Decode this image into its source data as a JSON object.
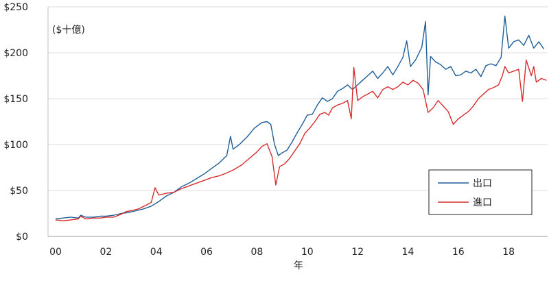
{
  "chart_data": {
    "type": "line",
    "title": "",
    "unit_label": "($十億)",
    "xlabel": "年",
    "ylabel": "",
    "ylim": [
      0,
      250
    ],
    "xlim": [
      1999.7,
      2019.55
    ],
    "yticks": [
      {
        "value": 0,
        "label": "$0"
      },
      {
        "value": 50,
        "label": "$50"
      },
      {
        "value": 100,
        "label": "$100"
      },
      {
        "value": 150,
        "label": "$150"
      },
      {
        "value": 200,
        "label": "$200"
      },
      {
        "value": 250,
        "label": "$250"
      }
    ],
    "xticks": [
      {
        "value": 2000,
        "label": "00"
      },
      {
        "value": 2002,
        "label": "02"
      },
      {
        "value": 2004,
        "label": "04"
      },
      {
        "value": 2006,
        "label": "06"
      },
      {
        "value": 2008,
        "label": "08"
      },
      {
        "value": 2010,
        "label": "10"
      },
      {
        "value": 2012,
        "label": "12"
      },
      {
        "value": 2014,
        "label": "14"
      },
      {
        "value": 2016,
        "label": "16"
      },
      {
        "value": 2018,
        "label": "18"
      }
    ],
    "grid": "horizontal",
    "legend_position": "bottom-right",
    "series": [
      {
        "name": "出口",
        "color": "#1f5f99",
        "points": [
          [
            2000.0,
            19
          ],
          [
            2000.3,
            20
          ],
          [
            2000.6,
            21
          ],
          [
            2000.9,
            20
          ],
          [
            2001.0,
            23
          ],
          [
            2001.2,
            21
          ],
          [
            2001.5,
            21
          ],
          [
            2001.8,
            22
          ],
          [
            2002.0,
            22
          ],
          [
            2002.3,
            23
          ],
          [
            2002.6,
            25
          ],
          [
            2002.9,
            26
          ],
          [
            2003.2,
            28
          ],
          [
            2003.5,
            30
          ],
          [
            2003.8,
            33
          ],
          [
            2004.1,
            38
          ],
          [
            2004.4,
            44
          ],
          [
            2004.7,
            48
          ],
          [
            2005.0,
            54
          ],
          [
            2005.3,
            58
          ],
          [
            2005.6,
            63
          ],
          [
            2005.9,
            68
          ],
          [
            2006.2,
            74
          ],
          [
            2006.5,
            80
          ],
          [
            2006.8,
            88
          ],
          [
            2006.95,
            109
          ],
          [
            2007.05,
            95
          ],
          [
            2007.3,
            100
          ],
          [
            2007.6,
            108
          ],
          [
            2007.9,
            118
          ],
          [
            2008.2,
            124
          ],
          [
            2008.4,
            125
          ],
          [
            2008.55,
            122
          ],
          [
            2008.7,
            100
          ],
          [
            2008.85,
            88
          ],
          [
            2009.0,
            91
          ],
          [
            2009.2,
            94
          ],
          [
            2009.4,
            103
          ],
          [
            2009.6,
            113
          ],
          [
            2009.8,
            122
          ],
          [
            2010.0,
            132
          ],
          [
            2010.2,
            133
          ],
          [
            2010.4,
            143
          ],
          [
            2010.6,
            151
          ],
          [
            2010.8,
            147
          ],
          [
            2011.0,
            150
          ],
          [
            2011.2,
            158
          ],
          [
            2011.4,
            161
          ],
          [
            2011.6,
            165
          ],
          [
            2011.8,
            160
          ],
          [
            2012.0,
            165
          ],
          [
            2012.2,
            170
          ],
          [
            2012.4,
            175
          ],
          [
            2012.6,
            180
          ],
          [
            2012.8,
            172
          ],
          [
            2013.0,
            178
          ],
          [
            2013.2,
            185
          ],
          [
            2013.4,
            176
          ],
          [
            2013.6,
            185
          ],
          [
            2013.8,
            195
          ],
          [
            2013.95,
            213
          ],
          [
            2014.1,
            185
          ],
          [
            2014.3,
            192
          ],
          [
            2014.55,
            206
          ],
          [
            2014.7,
            234
          ],
          [
            2014.8,
            154
          ],
          [
            2014.9,
            196
          ],
          [
            2015.1,
            190
          ],
          [
            2015.3,
            187
          ],
          [
            2015.5,
            182
          ],
          [
            2015.7,
            185
          ],
          [
            2015.9,
            175
          ],
          [
            2016.1,
            176
          ],
          [
            2016.3,
            180
          ],
          [
            2016.5,
            178
          ],
          [
            2016.7,
            182
          ],
          [
            2016.9,
            174
          ],
          [
            2017.1,
            186
          ],
          [
            2017.3,
            188
          ],
          [
            2017.5,
            186
          ],
          [
            2017.7,
            195
          ],
          [
            2017.85,
            240
          ],
          [
            2018.0,
            205
          ],
          [
            2018.2,
            212
          ],
          [
            2018.4,
            214
          ],
          [
            2018.6,
            208
          ],
          [
            2018.8,
            219
          ],
          [
            2019.0,
            205
          ],
          [
            2019.2,
            212
          ],
          [
            2019.4,
            204
          ]
        ]
      },
      {
        "name": "進口",
        "color": "#d62c2c",
        "points": [
          [
            2000.0,
            18
          ],
          [
            2000.3,
            17
          ],
          [
            2000.6,
            18
          ],
          [
            2000.9,
            19
          ],
          [
            2001.0,
            22
          ],
          [
            2001.2,
            19
          ],
          [
            2001.5,
            20
          ],
          [
            2001.8,
            20
          ],
          [
            2002.0,
            21
          ],
          [
            2002.3,
            21
          ],
          [
            2002.6,
            24
          ],
          [
            2002.8,
            27
          ],
          [
            2003.0,
            28
          ],
          [
            2003.3,
            30
          ],
          [
            2003.6,
            34
          ],
          [
            2003.8,
            37
          ],
          [
            2003.95,
            53
          ],
          [
            2004.1,
            45
          ],
          [
            2004.4,
            47
          ],
          [
            2004.7,
            48
          ],
          [
            2005.0,
            52
          ],
          [
            2005.3,
            55
          ],
          [
            2005.6,
            58
          ],
          [
            2005.9,
            61
          ],
          [
            2006.2,
            64
          ],
          [
            2006.5,
            66
          ],
          [
            2006.8,
            69
          ],
          [
            2007.1,
            73
          ],
          [
            2007.4,
            78
          ],
          [
            2007.7,
            85
          ],
          [
            2008.0,
            92
          ],
          [
            2008.2,
            98
          ],
          [
            2008.4,
            101
          ],
          [
            2008.6,
            87
          ],
          [
            2008.75,
            56
          ],
          [
            2008.9,
            76
          ],
          [
            2009.1,
            79
          ],
          [
            2009.3,
            85
          ],
          [
            2009.5,
            93
          ],
          [
            2009.7,
            101
          ],
          [
            2009.9,
            112
          ],
          [
            2010.1,
            118
          ],
          [
            2010.3,
            125
          ],
          [
            2010.5,
            133
          ],
          [
            2010.7,
            135
          ],
          [
            2010.85,
            132
          ],
          [
            2011.0,
            140
          ],
          [
            2011.2,
            143
          ],
          [
            2011.4,
            145
          ],
          [
            2011.6,
            148
          ],
          [
            2011.75,
            128
          ],
          [
            2011.85,
            184
          ],
          [
            2012.0,
            148
          ],
          [
            2012.2,
            152
          ],
          [
            2012.4,
            155
          ],
          [
            2012.6,
            158
          ],
          [
            2012.8,
            151
          ],
          [
            2013.0,
            160
          ],
          [
            2013.2,
            163
          ],
          [
            2013.4,
            160
          ],
          [
            2013.6,
            163
          ],
          [
            2013.8,
            168
          ],
          [
            2014.0,
            165
          ],
          [
            2014.2,
            170
          ],
          [
            2014.4,
            167
          ],
          [
            2014.6,
            160
          ],
          [
            2014.8,
            135
          ],
          [
            2015.0,
            140
          ],
          [
            2015.2,
            148
          ],
          [
            2015.4,
            142
          ],
          [
            2015.6,
            136
          ],
          [
            2015.8,
            122
          ],
          [
            2016.0,
            128
          ],
          [
            2016.2,
            132
          ],
          [
            2016.4,
            136
          ],
          [
            2016.6,
            142
          ],
          [
            2016.8,
            150
          ],
          [
            2017.0,
            155
          ],
          [
            2017.2,
            160
          ],
          [
            2017.4,
            162
          ],
          [
            2017.6,
            165
          ],
          [
            2017.75,
            175
          ],
          [
            2017.85,
            185
          ],
          [
            2018.0,
            178
          ],
          [
            2018.2,
            180
          ],
          [
            2018.4,
            182
          ],
          [
            2018.55,
            147
          ],
          [
            2018.7,
            192
          ],
          [
            2018.9,
            175
          ],
          [
            2019.0,
            185
          ],
          [
            2019.1,
            168
          ],
          [
            2019.3,
            172
          ],
          [
            2019.5,
            170
          ]
        ]
      }
    ]
  }
}
